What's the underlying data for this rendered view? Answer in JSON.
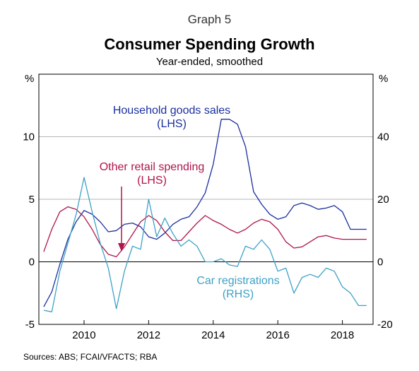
{
  "graph_label": "Graph 5",
  "title": "Consumer Spending Growth",
  "subtitle": "Year-ended, smoothed",
  "unit_left": "%",
  "unit_right": "%",
  "source": "Sources:   ABS; FCAI/VFACTS; RBA",
  "colors": {
    "household": "#1a2f9e",
    "retail": "#b0144c",
    "car": "#3ea1c6",
    "grid": "#b5b5b5",
    "frame": "#000000"
  },
  "chart_data": {
    "type": "line",
    "title": "Consumer Spending Growth",
    "subtitle": "Year-ended, smoothed",
    "x_range": [
      2008.6,
      2018.95
    ],
    "x_ticks": [
      2010,
      2012,
      2014,
      2016,
      2018
    ],
    "x_tick_labels": [
      "2010",
      "2012",
      "2014",
      "2016",
      "2018"
    ],
    "y_left": {
      "range": [
        -5,
        15
      ],
      "ticks": [
        -5,
        0,
        5,
        10
      ],
      "tick_labels": [
        "-5",
        "0",
        "5",
        "10"
      ]
    },
    "y_right": {
      "range": [
        -20,
        60
      ],
      "ticks": [
        -20,
        0,
        20,
        40
      ],
      "tick_labels": [
        "-20",
        "0",
        "20",
        "40"
      ]
    },
    "grid": true,
    "series": [
      {
        "name": "Household goods sales",
        "sub": "(LHS)",
        "axis": "left",
        "x": [
          2008.75,
          2009.0,
          2009.25,
          2009.5,
          2009.75,
          2010.0,
          2010.25,
          2010.5,
          2010.75,
          2011.0,
          2011.25,
          2011.5,
          2011.75,
          2012.0,
          2012.25,
          2012.5,
          2012.75,
          2013.0,
          2013.25,
          2013.5,
          2013.75,
          2014.0,
          2014.25,
          2014.5,
          2014.75,
          2015.0,
          2015.25,
          2015.5,
          2015.75,
          2016.0,
          2016.25,
          2016.5,
          2016.75,
          2017.0,
          2017.25,
          2017.5,
          2017.75,
          2018.0,
          2018.25,
          2018.5,
          2018.75
        ],
        "y": [
          -3.6,
          -2.4,
          -0.2,
          1.8,
          3.2,
          4.1,
          3.8,
          3.2,
          2.4,
          2.5,
          3.0,
          3.1,
          2.8,
          2.0,
          1.8,
          2.3,
          3.0,
          3.4,
          3.6,
          4.4,
          5.5,
          7.8,
          11.4,
          11.4,
          11.0,
          9.2,
          5.6,
          4.6,
          3.8,
          3.4,
          3.6,
          4.5,
          4.7,
          4.5,
          4.2,
          4.3,
          4.5,
          4.0,
          2.6,
          2.6,
          2.6
        ]
      },
      {
        "name": "Other retail spending",
        "sub": "(LHS)",
        "axis": "left",
        "x": [
          2008.75,
          2009.0,
          2009.25,
          2009.5,
          2009.75,
          2010.0,
          2010.25,
          2010.5,
          2010.75,
          2011.0,
          2011.25,
          2011.5,
          2011.75,
          2012.0,
          2012.25,
          2012.5,
          2012.75,
          2013.0,
          2013.25,
          2013.5,
          2013.75,
          2014.0,
          2014.25,
          2014.5,
          2014.75,
          2015.0,
          2015.25,
          2015.5,
          2015.75,
          2016.0,
          2016.25,
          2016.5,
          2016.75,
          2017.0,
          2017.25,
          2017.5,
          2017.75,
          2018.0,
          2018.25,
          2018.5,
          2018.75
        ],
        "y": [
          0.8,
          2.6,
          4.0,
          4.4,
          4.2,
          3.6,
          2.6,
          1.4,
          0.6,
          0.4,
          1.2,
          2.2,
          3.2,
          3.7,
          3.3,
          2.4,
          1.7,
          1.7,
          2.4,
          3.1,
          3.7,
          3.3,
          3.0,
          2.6,
          2.3,
          2.6,
          3.1,
          3.4,
          3.2,
          2.6,
          1.6,
          1.1,
          1.2,
          1.6,
          2.0,
          2.1,
          1.9,
          1.8,
          1.8,
          1.8,
          1.8
        ]
      },
      {
        "name": "Car registrations",
        "sub": "(RHS)",
        "axis": "right",
        "x": [
          2008.75,
          2009.0,
          2009.25,
          2009.5,
          2009.75,
          2010.0,
          2010.25,
          2010.5,
          2010.75,
          2011.0,
          2011.25,
          2011.5,
          2011.75,
          2012.0,
          2012.25,
          2012.5,
          2012.75,
          2013.0,
          2013.25,
          2013.5,
          2013.75,
          2014.0,
          2014.25,
          2014.5,
          2014.75,
          2015.0,
          2015.25,
          2015.5,
          2015.75,
          2016.0,
          2016.25,
          2016.5,
          2016.75,
          2017.0,
          2017.25,
          2017.5,
          2017.75,
          2018.0,
          2018.25,
          2018.5,
          2018.75
        ],
        "y": [
          -15.5,
          -16.0,
          -3.0,
          6.0,
          15.0,
          27.0,
          16.0,
          6.0,
          -2.0,
          -15.0,
          -3.0,
          5.0,
          4.0,
          20.0,
          8.0,
          14.0,
          9.0,
          5.0,
          7.0,
          5.0,
          0.0,
          0.0,
          1.0,
          -1.0,
          -1.5,
          5.0,
          4.0,
          7.0,
          4.0,
          -3.0,
          -2.0,
          -10.0,
          -5.0,
          -4.0,
          -5.0,
          -2.0,
          -3.0,
          -8.0,
          -10.0,
          -14.0,
          -14.0
        ]
      }
    ]
  },
  "annotations": {
    "household": {
      "line1": "Household goods sales",
      "line2": "(LHS)"
    },
    "retail": {
      "line1": "Other retail spending",
      "line2": "(LHS)"
    },
    "car": {
      "line1": "Car registrations",
      "line2": "(RHS)"
    }
  }
}
